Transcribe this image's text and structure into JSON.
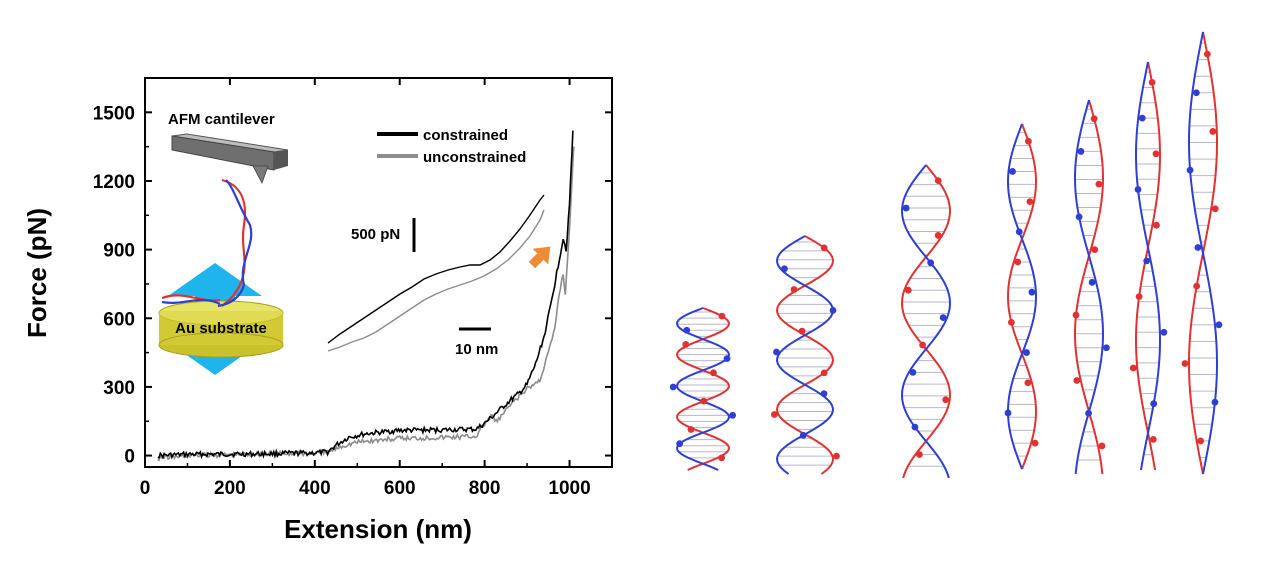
{
  "chart_data": {
    "type": "line",
    "xlabel": "Extension (nm)",
    "ylabel": "Force (pN)",
    "xlim": [
      0,
      1100
    ],
    "ylim": [
      -50,
      1650
    ],
    "xticks": [
      "0",
      "200",
      "400",
      "600",
      "800",
      "1000"
    ],
    "yticks": [
      "0",
      "300",
      "600",
      "900",
      "1200",
      "1500"
    ],
    "grid": false,
    "legend_position": "top-right",
    "series": [
      {
        "name": "constrained",
        "color": "#000000",
        "points": [
          [
            30,
            0
          ],
          [
            100,
            5
          ],
          [
            200,
            6
          ],
          [
            300,
            8
          ],
          [
            400,
            12
          ],
          [
            430,
            15
          ],
          [
            450,
            45
          ],
          [
            480,
            80
          ],
          [
            520,
            95
          ],
          [
            600,
            110
          ],
          [
            700,
            112
          ],
          [
            780,
            115
          ],
          [
            800,
            140
          ],
          [
            830,
            190
          ],
          [
            860,
            240
          ],
          [
            880,
            270
          ],
          [
            900,
            310
          ],
          [
            920,
            400
          ],
          [
            940,
            520
          ],
          [
            955,
            650
          ],
          [
            970,
            800
          ],
          [
            985,
            950
          ],
          [
            992,
            900
          ],
          [
            1000,
            1100
          ],
          [
            1008,
            1420
          ]
        ]
      },
      {
        "name": "unconstrained",
        "color": "#8c8c8c",
        "points": [
          [
            30,
            -10
          ],
          [
            100,
            0
          ],
          [
            200,
            5
          ],
          [
            300,
            8
          ],
          [
            400,
            10
          ],
          [
            430,
            15
          ],
          [
            460,
            40
          ],
          [
            500,
            60
          ],
          [
            600,
            75
          ],
          [
            700,
            80
          ],
          [
            780,
            85
          ],
          [
            800,
            140
          ],
          [
            815,
            170
          ],
          [
            830,
            150
          ],
          [
            860,
            220
          ],
          [
            900,
            290
          ],
          [
            930,
            330
          ],
          [
            950,
            450
          ],
          [
            965,
            550
          ],
          [
            975,
            700
          ],
          [
            985,
            800
          ],
          [
            990,
            700
          ],
          [
            1000,
            1000
          ],
          [
            1010,
            1350
          ]
        ]
      }
    ],
    "annotations": {
      "force_scale_bar": "500 pN",
      "extension_scale_bar": "10 nm"
    }
  },
  "inset": {
    "cantilever_label": "AFM cantilever",
    "substrate_label": "Au substrate"
  },
  "colors": {
    "arrow_blue": "#1fb4ec",
    "arrow_orange": "#f08a34",
    "gold_top": "#e7e46a",
    "gold_side": "#c9c22a",
    "strand_red": "#e03232",
    "strand_blue": "#2f3fd0"
  }
}
